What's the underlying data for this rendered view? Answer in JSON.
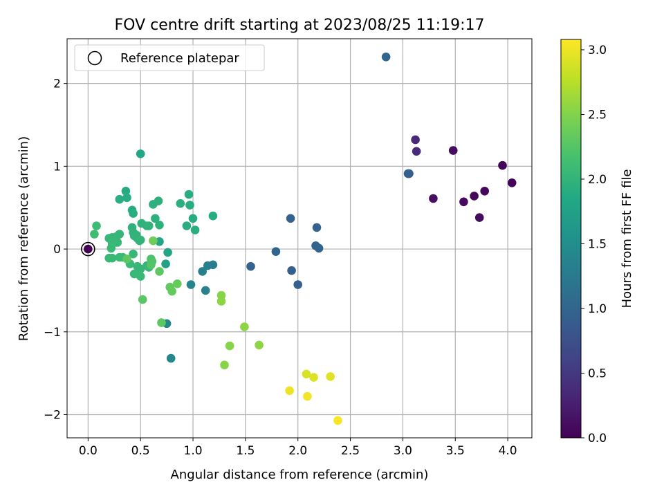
{
  "chart_data": {
    "type": "scatter",
    "title": "FOV centre drift starting at 2023/08/25 11:19:17",
    "xlabel": "Angular distance from reference (arcmin)",
    "ylabel": "Rotation from reference (arcmin)",
    "xlim": [
      -0.2,
      4.23
    ],
    "ylim": [
      -2.28,
      2.54
    ],
    "xticks": [
      0.0,
      0.5,
      1.0,
      1.5,
      2.0,
      2.5,
      3.0,
      3.5,
      4.0
    ],
    "xtick_labels": [
      "0.0",
      "0.5",
      "1.0",
      "1.5",
      "2.0",
      "2.5",
      "3.0",
      "3.5",
      "4.0"
    ],
    "yticks": [
      -2,
      -1,
      0,
      1,
      2
    ],
    "ytick_labels": [
      "−2",
      "−1",
      "0",
      "1",
      "2"
    ],
    "grid": true,
    "legend": {
      "placement": "top-left",
      "entries": [
        {
          "label": "Reference platepar",
          "marker": "open-circle",
          "x": 0.0,
          "y": 0.0
        }
      ]
    },
    "colorbar": {
      "label": "Hours from first FF file",
      "colormap": "viridis",
      "range": [
        0.0,
        3.08
      ],
      "ticks": [
        0.0,
        0.5,
        1.0,
        1.5,
        2.0,
        2.5,
        3.0
      ],
      "tick_labels": [
        "0.0",
        "0.5",
        "1.0",
        "1.5",
        "2.0",
        "2.5",
        "3.0"
      ],
      "colormap_stops": [
        "#440154",
        "#482475",
        "#414487",
        "#355f8d",
        "#2a788e",
        "#21918c",
        "#22a884",
        "#44bf70",
        "#7ad151",
        "#bddf26",
        "#fde725"
      ]
    },
    "points": [
      {
        "x": 0.0,
        "y": 0.0,
        "c": 0.0
      },
      {
        "x": 3.95,
        "y": 1.01,
        "c": 0.02
      },
      {
        "x": 4.04,
        "y": 0.8,
        "c": 0.03
      },
      {
        "x": 3.78,
        "y": 0.7,
        "c": 0.05
      },
      {
        "x": 3.68,
        "y": 0.64,
        "c": 0.06
      },
      {
        "x": 3.58,
        "y": 0.57,
        "c": 0.08
      },
      {
        "x": 3.73,
        "y": 0.38,
        "c": 0.09
      },
      {
        "x": 3.48,
        "y": 1.19,
        "c": 0.1
      },
      {
        "x": 3.29,
        "y": 0.61,
        "c": 0.12
      },
      {
        "x": 3.12,
        "y": 1.32,
        "c": 0.36
      },
      {
        "x": 3.13,
        "y": 1.18,
        "c": 0.38
      },
      {
        "x": 3.06,
        "y": 0.91,
        "c": 0.9
      },
      {
        "x": 3.05,
        "y": 0.91,
        "c": 0.92
      },
      {
        "x": 2.84,
        "y": 2.32,
        "c": 0.98
      },
      {
        "x": 1.93,
        "y": 0.37,
        "c": 0.95
      },
      {
        "x": 2.18,
        "y": 0.26,
        "c": 0.96
      },
      {
        "x": 2.17,
        "y": 0.04,
        "c": 0.97
      },
      {
        "x": 2.2,
        "y": 0.01,
        "c": 0.98
      },
      {
        "x": 1.79,
        "y": -0.03,
        "c": 1.0
      },
      {
        "x": 1.94,
        "y": -0.26,
        "c": 0.94
      },
      {
        "x": 2.0,
        "y": -0.43,
        "c": 0.95
      },
      {
        "x": 1.55,
        "y": -0.21,
        "c": 0.97
      },
      {
        "x": 1.19,
        "y": -0.19,
        "c": 1.3
      },
      {
        "x": 1.14,
        "y": -0.2,
        "c": 1.32
      },
      {
        "x": 1.09,
        "y": -0.27,
        "c": 1.34
      },
      {
        "x": 1.12,
        "y": -0.5,
        "c": 1.35
      },
      {
        "x": 0.98,
        "y": -0.43,
        "c": 1.38
      },
      {
        "x": 0.75,
        "y": -0.9,
        "c": 1.4
      },
      {
        "x": 0.79,
        "y": -1.32,
        "c": 1.42
      },
      {
        "x": 0.74,
        "y": -0.18,
        "c": 1.75
      },
      {
        "x": 0.76,
        "y": -0.04,
        "c": 1.8
      },
      {
        "x": 0.68,
        "y": 0.09,
        "c": 1.82
      },
      {
        "x": 0.5,
        "y": 1.15,
        "c": 1.85
      },
      {
        "x": 0.36,
        "y": 0.7,
        "c": 1.88
      },
      {
        "x": 0.37,
        "y": 0.62,
        "c": 1.9
      },
      {
        "x": 0.3,
        "y": 0.6,
        "c": 1.92
      },
      {
        "x": 0.42,
        "y": 0.47,
        "c": 1.9
      },
      {
        "x": 0.43,
        "y": 0.43,
        "c": 1.92
      },
      {
        "x": 0.96,
        "y": 0.66,
        "c": 1.9
      },
      {
        "x": 0.97,
        "y": 0.53,
        "c": 1.92
      },
      {
        "x": 0.88,
        "y": 0.55,
        "c": 1.94
      },
      {
        "x": 0.62,
        "y": 0.54,
        "c": 1.95
      },
      {
        "x": 0.67,
        "y": 0.58,
        "c": 1.96
      },
      {
        "x": 0.64,
        "y": 0.37,
        "c": 1.96
      },
      {
        "x": 0.68,
        "y": 0.29,
        "c": 1.97
      },
      {
        "x": 0.51,
        "y": 0.31,
        "c": 1.98
      },
      {
        "x": 0.56,
        "y": 0.28,
        "c": 1.98
      },
      {
        "x": 0.58,
        "y": 0.28,
        "c": 1.99
      },
      {
        "x": 1.0,
        "y": 0.37,
        "c": 1.9
      },
      {
        "x": 1.19,
        "y": 0.4,
        "c": 1.9
      },
      {
        "x": 0.94,
        "y": 0.28,
        "c": 1.92
      },
      {
        "x": 1.02,
        "y": 0.23,
        "c": 1.93
      },
      {
        "x": 0.42,
        "y": 0.26,
        "c": 1.97
      },
      {
        "x": 0.43,
        "y": 0.2,
        "c": 1.98
      },
      {
        "x": 0.44,
        "y": 0.16,
        "c": 1.99
      },
      {
        "x": 0.46,
        "y": 0.17,
        "c": 1.99
      },
      {
        "x": 0.47,
        "y": 0.13,
        "c": 2.0
      },
      {
        "x": 0.49,
        "y": 0.1,
        "c": 2.0
      },
      {
        "x": 0.5,
        "y": 0.11,
        "c": 2.0
      },
      {
        "x": 0.3,
        "y": 0.18,
        "c": 2.02
      },
      {
        "x": 0.27,
        "y": 0.15,
        "c": 2.02
      },
      {
        "x": 0.23,
        "y": 0.14,
        "c": 2.03
      },
      {
        "x": 0.2,
        "y": 0.13,
        "c": 2.04
      },
      {
        "x": 0.28,
        "y": 0.08,
        "c": 2.05
      },
      {
        "x": 0.23,
        "y": 0.06,
        "c": 2.06
      },
      {
        "x": 0.22,
        "y": 0.01,
        "c": 2.06
      },
      {
        "x": 0.08,
        "y": 0.28,
        "c": 2.1
      },
      {
        "x": 0.06,
        "y": 0.18,
        "c": 2.12
      },
      {
        "x": 0.2,
        "y": -0.11,
        "c": 2.05
      },
      {
        "x": 0.23,
        "y": -0.11,
        "c": 2.06
      },
      {
        "x": 0.3,
        "y": -0.1,
        "c": 2.07
      },
      {
        "x": 0.33,
        "y": -0.1,
        "c": 2.08
      },
      {
        "x": 0.4,
        "y": -0.18,
        "c": 2.06
      },
      {
        "x": 0.43,
        "y": -0.06,
        "c": 2.04
      },
      {
        "x": 0.47,
        "y": -0.21,
        "c": 2.05
      },
      {
        "x": 0.5,
        "y": -0.24,
        "c": 2.04
      },
      {
        "x": 0.44,
        "y": -0.3,
        "c": 2.05
      },
      {
        "x": 0.5,
        "y": -0.33,
        "c": 2.06
      },
      {
        "x": 0.56,
        "y": -0.2,
        "c": 2.04
      },
      {
        "x": 0.58,
        "y": -0.22,
        "c": 2.05
      },
      {
        "x": 0.6,
        "y": -0.12,
        "c": 2.2
      },
      {
        "x": 0.61,
        "y": -0.15,
        "c": 2.22
      },
      {
        "x": 0.6,
        "y": -0.19,
        "c": 2.24
      },
      {
        "x": 0.37,
        "y": -0.12,
        "c": 2.3
      },
      {
        "x": 0.62,
        "y": 0.1,
        "c": 2.4
      },
      {
        "x": 0.68,
        "y": -0.27,
        "c": 2.3
      },
      {
        "x": 0.52,
        "y": -0.61,
        "c": 2.28
      },
      {
        "x": 0.7,
        "y": -0.89,
        "c": 2.3
      },
      {
        "x": 0.78,
        "y": -0.46,
        "c": 2.32
      },
      {
        "x": 0.8,
        "y": -0.51,
        "c": 2.34
      },
      {
        "x": 0.85,
        "y": -0.42,
        "c": 2.35
      },
      {
        "x": 1.27,
        "y": -0.56,
        "c": 2.52
      },
      {
        "x": 1.27,
        "y": -0.63,
        "c": 2.54
      },
      {
        "x": 1.49,
        "y": -0.94,
        "c": 2.55
      },
      {
        "x": 1.35,
        "y": -1.17,
        "c": 2.52
      },
      {
        "x": 1.3,
        "y": -1.4,
        "c": 2.53
      },
      {
        "x": 1.63,
        "y": -1.16,
        "c": 2.55
      },
      {
        "x": 2.08,
        "y": -1.51,
        "c": 2.9
      },
      {
        "x": 2.15,
        "y": -1.55,
        "c": 2.92
      },
      {
        "x": 2.31,
        "y": -1.54,
        "c": 2.94
      },
      {
        "x": 1.92,
        "y": -1.71,
        "c": 3.0
      },
      {
        "x": 2.09,
        "y": -1.78,
        "c": 3.02
      },
      {
        "x": 2.38,
        "y": -2.07,
        "c": 3.05
      }
    ]
  }
}
